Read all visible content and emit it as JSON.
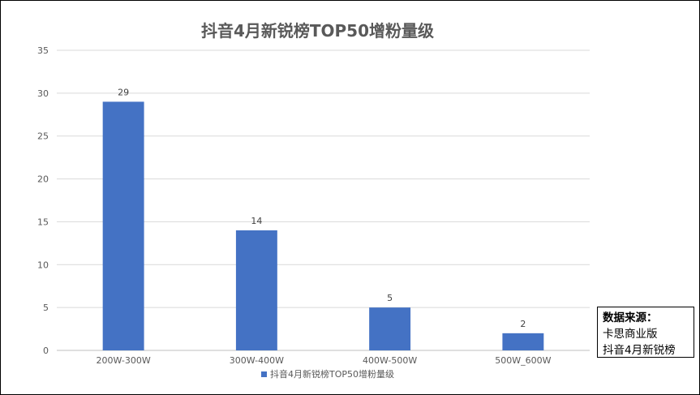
{
  "chart_data": {
    "type": "bar",
    "title": "抖音4月新锐榜TOP50增粉量级",
    "categories": [
      "200W-300W",
      "300W-400W",
      "400W-500W",
      "500W_600W"
    ],
    "series": [
      {
        "name": "抖音4月新锐榜TOP50增粉量级",
        "values": [
          29,
          14,
          5,
          2
        ],
        "color": "#4472C4"
      }
    ],
    "ylim": [
      0,
      35
    ],
    "yticks": [
      0,
      5,
      10,
      15,
      20,
      25,
      30,
      35
    ],
    "grid": true,
    "legend": "bottom",
    "data_labels": true
  },
  "source_note": {
    "heading": "数据来源：",
    "lines": [
      "卡思商业版",
      "抖音4月新锐榜"
    ]
  }
}
